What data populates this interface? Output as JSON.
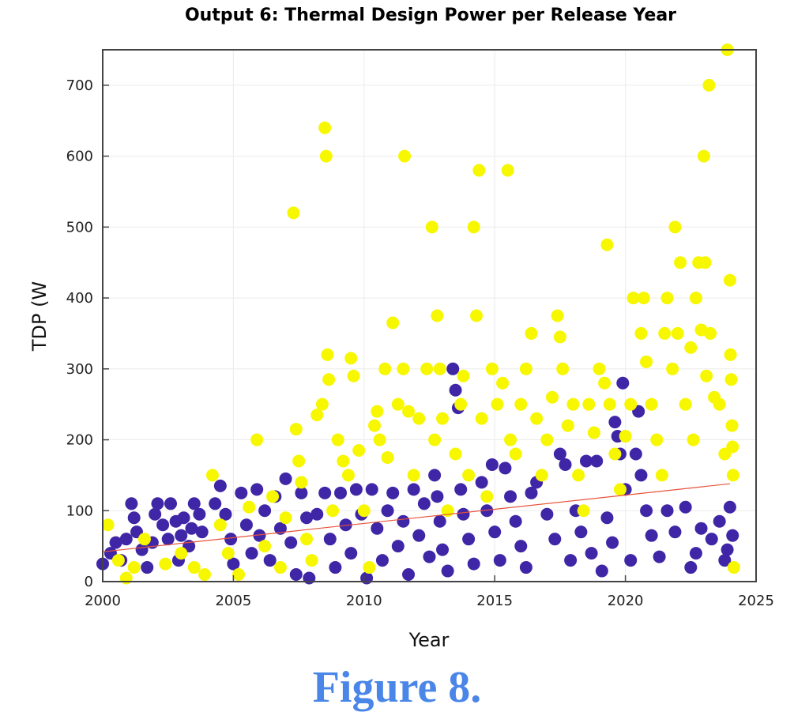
{
  "caption": "Figure 8.",
  "colors": {
    "caption": "#4a86e8",
    "series_a": "#3f26a6",
    "series_b": "#f7f700",
    "trend": "#e8523a",
    "frame": "#444444",
    "grid": "#ebebeb"
  },
  "chart_data": {
    "type": "scatter",
    "title": "Output 6: Thermal Design Power per Release Year",
    "xlabel": "Year",
    "ylabel": "TDP (W",
    "xlim": [
      2000,
      2025
    ],
    "ylim": [
      0,
      750
    ],
    "xticks": [
      2000,
      2005,
      2010,
      2015,
      2020,
      2025
    ],
    "yticks": [
      0,
      100,
      200,
      300,
      400,
      500,
      600,
      700
    ],
    "grid": true,
    "legend": "none",
    "series": [
      {
        "color": "#3f26a6",
        "points": [
          [
            2000.0,
            25
          ],
          [
            2000.3,
            40
          ],
          [
            2000.5,
            55
          ],
          [
            2000.7,
            30
          ],
          [
            2000.9,
            60
          ],
          [
            2001.1,
            110
          ],
          [
            2001.2,
            90
          ],
          [
            2001.3,
            70
          ],
          [
            2001.5,
            45
          ],
          [
            2001.7,
            20
          ],
          [
            2001.9,
            55
          ],
          [
            2002.0,
            95
          ],
          [
            2002.1,
            110
          ],
          [
            2002.3,
            80
          ],
          [
            2002.5,
            60
          ],
          [
            2002.6,
            110
          ],
          [
            2002.8,
            85
          ],
          [
            2002.9,
            30
          ],
          [
            2003.0,
            65
          ],
          [
            2003.1,
            90
          ],
          [
            2003.3,
            50
          ],
          [
            2003.4,
            75
          ],
          [
            2003.5,
            110
          ],
          [
            2003.7,
            95
          ],
          [
            2003.8,
            70
          ],
          [
            2004.3,
            110
          ],
          [
            2004.5,
            135
          ],
          [
            2004.7,
            95
          ],
          [
            2004.9,
            60
          ],
          [
            2005.0,
            25
          ],
          [
            2005.3,
            125
          ],
          [
            2005.5,
            80
          ],
          [
            2005.7,
            40
          ],
          [
            2005.9,
            130
          ],
          [
            2006.0,
            65
          ],
          [
            2006.2,
            100
          ],
          [
            2006.4,
            30
          ],
          [
            2006.6,
            120
          ],
          [
            2006.8,
            75
          ],
          [
            2007.0,
            145
          ],
          [
            2007.2,
            55
          ],
          [
            2007.4,
            10
          ],
          [
            2007.6,
            125
          ],
          [
            2007.8,
            90
          ],
          [
            2007.9,
            5
          ],
          [
            2008.2,
            95
          ],
          [
            2008.5,
            125
          ],
          [
            2008.7,
            60
          ],
          [
            2008.9,
            20
          ],
          [
            2009.1,
            125
          ],
          [
            2009.3,
            80
          ],
          [
            2009.5,
            40
          ],
          [
            2009.7,
            130
          ],
          [
            2009.9,
            95
          ],
          [
            2010.1,
            5
          ],
          [
            2010.3,
            130
          ],
          [
            2010.5,
            75
          ],
          [
            2010.7,
            30
          ],
          [
            2010.9,
            100
          ],
          [
            2011.1,
            125
          ],
          [
            2011.3,
            50
          ],
          [
            2011.5,
            85
          ],
          [
            2011.7,
            10
          ],
          [
            2011.9,
            130
          ],
          [
            2012.1,
            65
          ],
          [
            2012.3,
            110
          ],
          [
            2012.5,
            35
          ],
          [
            2012.7,
            150
          ],
          [
            2012.8,
            120
          ],
          [
            2012.9,
            85
          ],
          [
            2013.0,
            45
          ],
          [
            2013.2,
            15
          ],
          [
            2013.4,
            300
          ],
          [
            2013.5,
            270
          ],
          [
            2013.6,
            245
          ],
          [
            2013.7,
            130
          ],
          [
            2013.8,
            95
          ],
          [
            2014.0,
            60
          ],
          [
            2014.2,
            25
          ],
          [
            2014.5,
            140
          ],
          [
            2014.7,
            100
          ],
          [
            2014.9,
            165
          ],
          [
            2015.0,
            70
          ],
          [
            2015.2,
            30
          ],
          [
            2015.4,
            160
          ],
          [
            2015.6,
            120
          ],
          [
            2015.8,
            85
          ],
          [
            2016.0,
            50
          ],
          [
            2016.2,
            20
          ],
          [
            2016.4,
            125
          ],
          [
            2016.6,
            140
          ],
          [
            2017.0,
            95
          ],
          [
            2017.3,
            60
          ],
          [
            2017.5,
            180
          ],
          [
            2017.7,
            165
          ],
          [
            2017.9,
            30
          ],
          [
            2018.1,
            100
          ],
          [
            2018.3,
            70
          ],
          [
            2018.5,
            170
          ],
          [
            2018.7,
            40
          ],
          [
            2018.9,
            170
          ],
          [
            2019.1,
            15
          ],
          [
            2019.3,
            90
          ],
          [
            2019.5,
            55
          ],
          [
            2019.6,
            225
          ],
          [
            2019.7,
            205
          ],
          [
            2019.8,
            180
          ],
          [
            2019.9,
            280
          ],
          [
            2020.0,
            130
          ],
          [
            2020.2,
            30
          ],
          [
            2020.4,
            180
          ],
          [
            2020.5,
            240
          ],
          [
            2020.6,
            150
          ],
          [
            2020.8,
            100
          ],
          [
            2021.0,
            65
          ],
          [
            2021.3,
            35
          ],
          [
            2021.6,
            100
          ],
          [
            2021.9,
            70
          ],
          [
            2022.3,
            105
          ],
          [
            2022.5,
            20
          ],
          [
            2022.7,
            40
          ],
          [
            2022.9,
            75
          ],
          [
            2023.3,
            60
          ],
          [
            2023.6,
            85
          ],
          [
            2023.8,
            30
          ],
          [
            2023.9,
            45
          ],
          [
            2024.0,
            105
          ],
          [
            2024.1,
            65
          ]
        ]
      },
      {
        "color": "#f7f700",
        "points": [
          [
            2000.2,
            80
          ],
          [
            2000.6,
            30
          ],
          [
            2000.9,
            5
          ],
          [
            2001.2,
            20
          ],
          [
            2001.6,
            60
          ],
          [
            2002.4,
            25
          ],
          [
            2003.0,
            40
          ],
          [
            2003.5,
            20
          ],
          [
            2003.9,
            10
          ],
          [
            2004.2,
            150
          ],
          [
            2004.5,
            80
          ],
          [
            2004.8,
            40
          ],
          [
            2005.2,
            10
          ],
          [
            2005.6,
            105
          ],
          [
            2005.9,
            200
          ],
          [
            2006.2,
            50
          ],
          [
            2006.5,
            120
          ],
          [
            2006.8,
            20
          ],
          [
            2007.0,
            90
          ],
          [
            2007.3,
            520
          ],
          [
            2007.4,
            215
          ],
          [
            2007.5,
            170
          ],
          [
            2007.6,
            140
          ],
          [
            2007.8,
            60
          ],
          [
            2008.0,
            30
          ],
          [
            2008.2,
            235
          ],
          [
            2008.4,
            250
          ],
          [
            2008.5,
            640
          ],
          [
            2008.55,
            600
          ],
          [
            2008.6,
            320
          ],
          [
            2008.65,
            285
          ],
          [
            2008.8,
            100
          ],
          [
            2009.0,
            200
          ],
          [
            2009.2,
            170
          ],
          [
            2009.4,
            150
          ],
          [
            2009.5,
            315
          ],
          [
            2009.6,
            290
          ],
          [
            2009.8,
            185
          ],
          [
            2010.0,
            100
          ],
          [
            2010.2,
            20
          ],
          [
            2010.4,
            220
          ],
          [
            2010.5,
            240
          ],
          [
            2010.6,
            200
          ],
          [
            2010.8,
            300
          ],
          [
            2010.9,
            175
          ],
          [
            2011.1,
            365
          ],
          [
            2011.3,
            250
          ],
          [
            2011.5,
            300
          ],
          [
            2011.55,
            600
          ],
          [
            2011.7,
            240
          ],
          [
            2011.9,
            150
          ],
          [
            2012.1,
            230
          ],
          [
            2012.4,
            300
          ],
          [
            2012.6,
            500
          ],
          [
            2012.7,
            200
          ],
          [
            2012.8,
            375
          ],
          [
            2012.9,
            300
          ],
          [
            2013.0,
            230
          ],
          [
            2013.2,
            100
          ],
          [
            2013.5,
            180
          ],
          [
            2013.7,
            250
          ],
          [
            2013.8,
            290
          ],
          [
            2014.0,
            150
          ],
          [
            2014.2,
            500
          ],
          [
            2014.3,
            375
          ],
          [
            2014.4,
            580
          ],
          [
            2014.5,
            230
          ],
          [
            2014.7,
            120
          ],
          [
            2014.9,
            300
          ],
          [
            2015.1,
            250
          ],
          [
            2015.3,
            280
          ],
          [
            2015.5,
            580
          ],
          [
            2015.6,
            200
          ],
          [
            2015.8,
            180
          ],
          [
            2016.0,
            250
          ],
          [
            2016.2,
            300
          ],
          [
            2016.4,
            350
          ],
          [
            2016.6,
            230
          ],
          [
            2016.8,
            150
          ],
          [
            2017.0,
            200
          ],
          [
            2017.2,
            260
          ],
          [
            2017.4,
            375
          ],
          [
            2017.5,
            345
          ],
          [
            2017.6,
            300
          ],
          [
            2017.8,
            220
          ],
          [
            2018.0,
            250
          ],
          [
            2018.2,
            150
          ],
          [
            2018.4,
            100
          ],
          [
            2018.6,
            250
          ],
          [
            2018.8,
            210
          ],
          [
            2019.0,
            300
          ],
          [
            2019.2,
            280
          ],
          [
            2019.3,
            475
          ],
          [
            2019.4,
            250
          ],
          [
            2019.6,
            180
          ],
          [
            2019.8,
            130
          ],
          [
            2020.0,
            205
          ],
          [
            2020.2,
            250
          ],
          [
            2020.3,
            400
          ],
          [
            2020.6,
            350
          ],
          [
            2020.7,
            400
          ],
          [
            2020.8,
            310
          ],
          [
            2021.0,
            250
          ],
          [
            2021.2,
            200
          ],
          [
            2021.4,
            150
          ],
          [
            2021.5,
            350
          ],
          [
            2021.6,
            400
          ],
          [
            2021.8,
            300
          ],
          [
            2021.9,
            500
          ],
          [
            2022.0,
            350
          ],
          [
            2022.1,
            450
          ],
          [
            2022.3,
            250
          ],
          [
            2022.5,
            330
          ],
          [
            2022.6,
            200
          ],
          [
            2022.7,
            400
          ],
          [
            2022.8,
            450
          ],
          [
            2022.9,
            355
          ],
          [
            2023.0,
            600
          ],
          [
            2023.05,
            450
          ],
          [
            2023.1,
            290
          ],
          [
            2023.2,
            700
          ],
          [
            2023.25,
            350
          ],
          [
            2023.4,
            260
          ],
          [
            2023.6,
            250
          ],
          [
            2023.8,
            180
          ],
          [
            2023.9,
            750
          ],
          [
            2024.0,
            425
          ],
          [
            2024.02,
            320
          ],
          [
            2024.05,
            285
          ],
          [
            2024.08,
            220
          ],
          [
            2024.1,
            190
          ],
          [
            2024.12,
            150
          ],
          [
            2024.15,
            20
          ]
        ]
      }
    ],
    "trendline": {
      "color": "#e8523a",
      "x": [
        2000,
        2024
      ],
      "y": [
        42,
        138
      ]
    }
  }
}
